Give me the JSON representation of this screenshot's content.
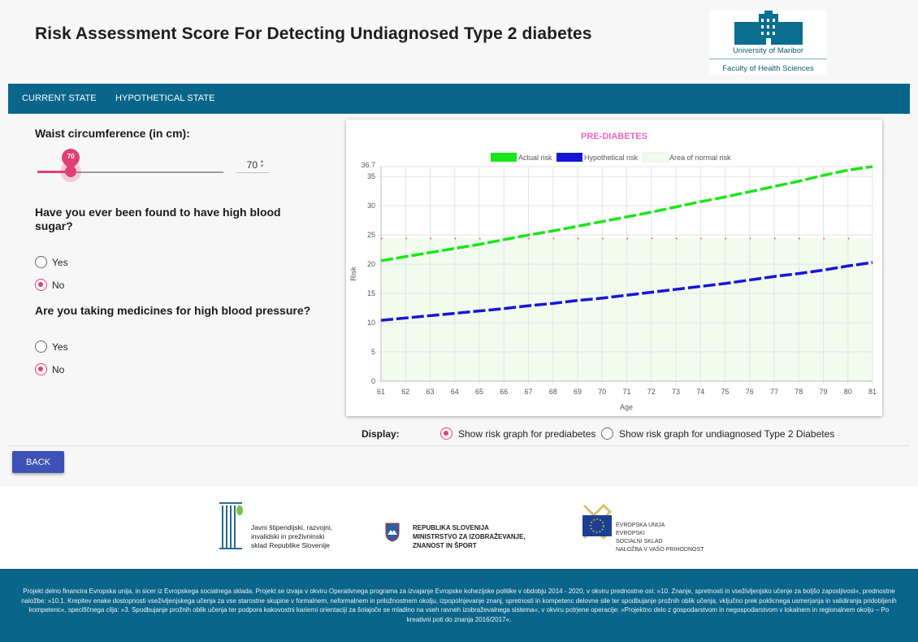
{
  "header": {
    "title": "Risk Assessment Score For Detecting Undiagnosed Type 2 diabetes",
    "logo": {
      "university": "University of Maribor",
      "faculty": "Faculty of Health Sciences"
    }
  },
  "nav": {
    "tabs": [
      {
        "label": "CURRENT STATE"
      },
      {
        "label": "HYPOTHETICAL STATE"
      }
    ]
  },
  "form": {
    "waist": {
      "label": "Waist circumference (in cm):",
      "value": "70",
      "slider_fraction": 0.18
    },
    "q_blood_sugar": {
      "label": "Have you ever been found to have high blood sugar?",
      "options": [
        {
          "label": "Yes",
          "checked": false
        },
        {
          "label": "No",
          "checked": true
        }
      ]
    },
    "q_medicines": {
      "label": "Are you taking medicines for high blood pressure?",
      "options": [
        {
          "label": "Yes",
          "checked": false
        },
        {
          "label": "No",
          "checked": true
        }
      ]
    }
  },
  "display": {
    "label": "Display:",
    "options": [
      {
        "label": "Show risk graph for prediabetes",
        "checked": true
      },
      {
        "label": "Show risk graph for undiagnosed Type 2 Diabetes",
        "checked": false
      }
    ]
  },
  "buttons": {
    "back": "BACK"
  },
  "colors": {
    "accent": "#e23f78",
    "nav": "#0a658b",
    "actual": "#19e619",
    "hypothetical": "#1515d6",
    "threshold": "#e03030",
    "normal_area": "#f1fbee",
    "title_pink": "#f067b8"
  },
  "chart_data": {
    "type": "line",
    "title": "PRE-DIABETES",
    "xlabel": "Age",
    "ylabel": "Risk",
    "x": [
      61,
      62,
      63,
      64,
      65,
      66,
      67,
      68,
      69,
      70,
      71,
      72,
      73,
      74,
      75,
      76,
      77,
      78,
      79,
      80,
      81
    ],
    "x_ticks": [
      "61",
      "62",
      "63",
      "64",
      "65",
      "66",
      "67",
      "68",
      "69",
      "70",
      "71",
      "72",
      "73",
      "74",
      "75",
      "76",
      "77",
      "78",
      "79",
      "80",
      "81"
    ],
    "y_ticks": [
      "0",
      "5",
      "10",
      "15",
      "20",
      "25",
      "30",
      "35"
    ],
    "y_max_label": "36.7",
    "ylim": [
      0,
      36.7
    ],
    "grid": true,
    "legend": [
      "Actual risk",
      "Hypothetical risk",
      "Area of normal risk"
    ],
    "series": [
      {
        "name": "Actual risk",
        "values": [
          20.6,
          21.3,
          22.0,
          22.7,
          23.4,
          24.2,
          25.0,
          25.7,
          26.5,
          27.3,
          28.1,
          28.9,
          29.8,
          30.7,
          31.5,
          32.4,
          33.3,
          34.2,
          35.2,
          36.1,
          36.7
        ]
      },
      {
        "name": "Hypothetical risk",
        "values": [
          10.4,
          10.8,
          11.2,
          11.6,
          12.0,
          12.4,
          12.9,
          13.3,
          13.8,
          14.2,
          14.7,
          15.2,
          15.7,
          16.2,
          16.7,
          17.3,
          17.9,
          18.4,
          19.0,
          19.7,
          20.3
        ]
      }
    ],
    "normal_risk_upper": 24.4
  },
  "sponsors": [
    {
      "text": "Javni štipendijski, razvojni,\ninvalidski in preživninski\nsklad Republike Slovenije"
    },
    {
      "text": "REPUBLIKA SLOVENIJA\nMINISTRSTVO ZA IZOBRAŽEVANJE,\nZNANOST IN ŠPORT"
    },
    {
      "text": "EVROPSKA UNIJA\nEVROPSKI\nSOCIALNI SKLAD\nNALOŽBA V VAŠO PRIHODNOST"
    }
  ],
  "footer": {
    "text": "Projekt delno financira Evropska unija, in sicer iz Evropskega socialnega sklada. Projekt se izvaja v okviru Operativnega programa za izvajanje Evropske kohezijske politike v obdobju 2014 - 2020, v okviru prednostne osi: »10. Znanje, spretnosti in vseživljenjsko učenje za boljšo zaposljivost«, prednostne naložbe: »10.1. Krepitev enake dostopnosti vseživljenjskega učenja za vse starostne skupine v formalnem, neformalnem in priložnostnem okolju, izpopolnjevanje znanj, spretnosti in kompetenc delovne sile ter spodbujanje prožnih oblik učenja, vključno prek poklicnega usmerjanja in validiranja pridobljenih kompetenc«, specifičnega cilja: »3. Spodbujanje prožnih oblik učenja ter podpora kakovostni karierni orientaciji za šolajoče se mladino na vseh ravneh izobraževalnega sistema«, v okviru potrjene operacije: »Projektno delo z gospodarstvom in negospodarstvom v lokalnem in regionalnem okolju – Po kreativni poti do znanja 2016/2017«."
  }
}
